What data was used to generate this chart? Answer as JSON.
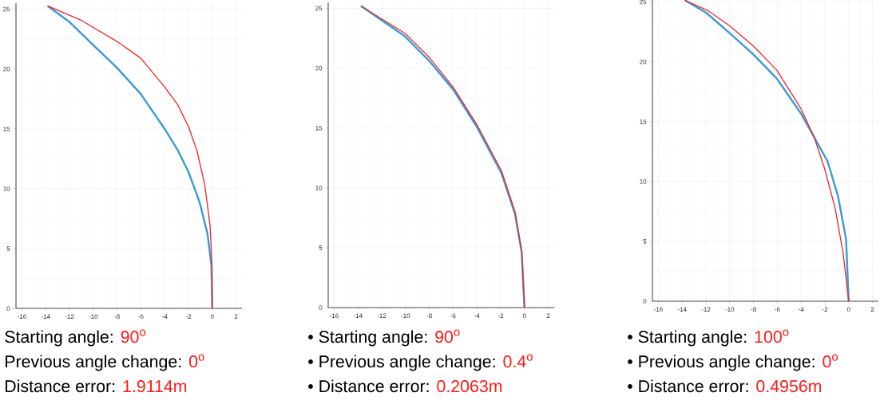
{
  "chart_data": [
    {
      "type": "line",
      "x": [
        -13.84,
        -11.07,
        -8,
        -6,
        -4,
        -2.89,
        -2,
        -1.29,
        -0.62,
        -0.18,
        -0.02,
        0
      ],
      "xlim": [
        -16.5,
        2.5
      ],
      "ylim": [
        0,
        25.5
      ],
      "xticks": [
        -16,
        -14,
        -12,
        -10,
        -8,
        -6,
        -4,
        -2,
        0,
        2
      ],
      "yticks": [
        0,
        5,
        10,
        15,
        20,
        25
      ],
      "grid": true,
      "series": [
        {
          "color": "#3a9bd5",
          "x": [
            -13.84,
            -11.96,
            -10,
            -8,
            -6,
            -4,
            -2.89,
            -2,
            -1.07,
            -0.4,
            -0.07,
            0
          ],
          "values": [
            25.27,
            23.9,
            22.0,
            20.1,
            17.9,
            15.0,
            13.2,
            11.4,
            8.9,
            6.25,
            3.6,
            0
          ]
        },
        {
          "color": "#f0282d",
          "values": [
            25.27,
            24.1,
            22.3,
            20.9,
            18.5,
            17.0,
            15.2,
            13.2,
            10.3,
            6.9,
            3.6,
            0
          ]
        }
      ],
      "annotations": [
        "Starting angle: ",
        "90$^{o}$",
        "Previous angle change: ",
        "0$^{o}$",
        "Distance error: ",
        "1.9114m"
      ]
    },
    {
      "type": "line",
      "x": [
        -13.75,
        -10.03,
        -8,
        -5.98,
        -3.95,
        -1.92,
        -0.79,
        -0.23,
        0
      ],
      "xlim": [
        -16.5,
        2.5
      ],
      "ylim": [
        0,
        25.5
      ],
      "xticks": [
        -16,
        -14,
        -12,
        -10,
        -8,
        -6,
        -4,
        -2,
        0,
        2
      ],
      "yticks": [
        0,
        5,
        10,
        15,
        20,
        25
      ],
      "grid": true,
      "series": [
        {
          "color": "#3a9bd5",
          "values": [
            25.2,
            22.65,
            20.6,
            18.2,
            15.0,
            11.2,
            7.8,
            4.6,
            0
          ]
        },
        {
          "color": "#f0282d",
          "values": [
            25.2,
            22.9,
            20.9,
            18.4,
            15.2,
            11.4,
            8.0,
            4.7,
            0
          ]
        }
      ],
      "annotations": [
        "• Starting angle: ",
        "90$^{o}$",
        "• Previous angle change: ",
        "0.4$^{o}$",
        "• Distance error: ",
        "0.2063m"
      ]
    },
    {
      "type": "line",
      "xlim": [
        -16.5,
        2.5
      ],
      "ylim": [
        0,
        25.5
      ],
      "xticks": [
        -16,
        -14,
        -12,
        -10,
        -8,
        -6,
        -4,
        -2,
        0,
        2
      ],
      "yticks": [
        0,
        5,
        10,
        15,
        20,
        25
      ],
      "grid": true,
      "series": [
        {
          "color": "#3a9bd5",
          "x": [
            -13.78,
            -11.98,
            -10,
            -7.99,
            -6.04,
            -4.02,
            -2.9,
            -1.78,
            -0.9,
            -0.22,
            0
          ],
          "values": [
            25.15,
            24.1,
            22.4,
            20.6,
            18.6,
            15.7,
            13.7,
            11.7,
            8.8,
            5.2,
            0
          ]
        },
        {
          "color": "#f0282d",
          "x": [
            -13.78,
            -11.86,
            -10,
            -7.99,
            -6.04,
            -4.02,
            -2.9,
            -2.0,
            -1.12,
            -0.45,
            0
          ],
          "values": [
            25.15,
            24.3,
            23.0,
            21.3,
            19.3,
            16.1,
            13.7,
            11.0,
            7.7,
            3.9,
            0
          ]
        }
      ],
      "annotations": [
        "• Starting angle: ",
        "100$^{o}$",
        "• Previous angle change: ",
        "0$^{o}$",
        "• Distance error: ",
        "0.4956m"
      ]
    }
  ]
}
